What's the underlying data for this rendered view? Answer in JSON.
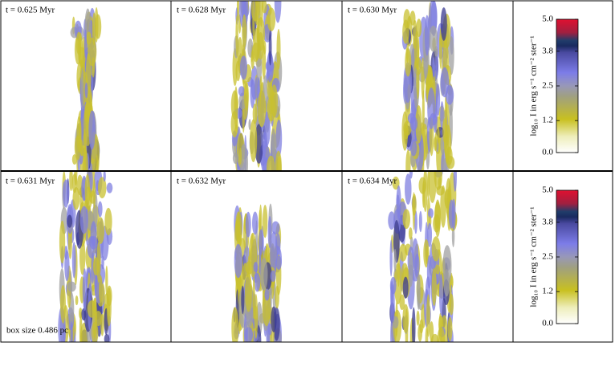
{
  "panels": [
    {
      "label": "t = 0.625 Myr"
    },
    {
      "label": "t = 0.628 Myr"
    },
    {
      "label": "t = 0.630 Myr"
    },
    {
      "label": "t = 0.631 Myr"
    },
    {
      "label": "t = 0.632 Myr"
    },
    {
      "label": "t = 0.634 Myr"
    }
  ],
  "box_size": "box size 0.486 pc",
  "colorbars": [
    {
      "label": "log₁₀ I in erg s⁻¹ cm⁻² ster⁻¹",
      "lim": [
        0,
        5
      ],
      "ticks": [
        {
          "value": 0,
          "label": "0.0"
        },
        1.2,
        2.5,
        3.8,
        {
          "value": 5,
          "label": "5.0"
        }
      ]
    },
    {
      "label": "log₁₀ I in erg s⁻¹ cm⁻² ster⁻¹",
      "lim": [
        0,
        5
      ],
      "ticks": [
        {
          "value": 0,
          "label": "0.0"
        },
        1.2,
        2.5,
        3.8,
        {
          "value": 5,
          "label": "5.0"
        }
      ]
    }
  ]
}
